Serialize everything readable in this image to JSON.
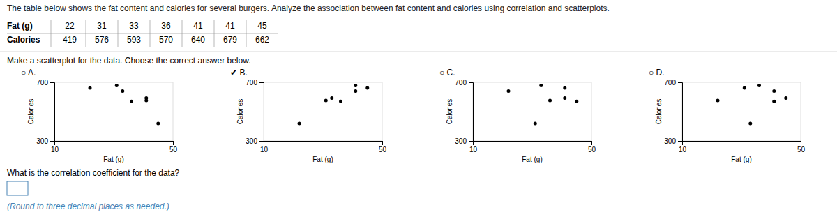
{
  "title": "The table below shows the fat content and calories for several burgers. Analyze the association between fat content and calories using correlation and scatterplots.",
  "table": {
    "rows": [
      {
        "label": "Fat (g)",
        "values": [
          22,
          31,
          33,
          36,
          41,
          41,
          45
        ]
      },
      {
        "label": "Calories",
        "values": [
          419,
          576,
          593,
          570,
          640,
          679,
          662
        ]
      }
    ]
  },
  "annotations": [
    "Make a scatterplot for the data. Choose the correct answer below.",
    "What is the correlation coefficient for the data?",
    "(Round to three decimal places as needed.)"
  ],
  "chart_data": [
    {
      "type": "scatter",
      "title": "○ A.",
      "x_label": "Fat (g)",
      "y_label": "Calories",
      "color": "#000000",
      "x": [
        22,
        31,
        33,
        36,
        41,
        41,
        45
      ],
      "values": [
        662,
        679,
        640,
        570,
        593,
        576,
        419
      ],
      "xlim": [
        10,
        50
      ],
      "xticks": [
        10,
        50
      ],
      "ylim": [
        300,
        700
      ],
      "yticks": [
        300,
        700
      ],
      "grid": true
    },
    {
      "type": "scatter",
      "title": "✔ B.",
      "x_label": "Fat (g)",
      "y_label": "Calories",
      "color": "#000000",
      "x": [
        22,
        31,
        33,
        36,
        41,
        41,
        45
      ],
      "values": [
        419,
        576,
        593,
        570,
        640,
        679,
        662
      ],
      "xlim": [
        10,
        50
      ],
      "xticks": [
        10,
        50
      ],
      "ylim": [
        300,
        700
      ],
      "yticks": [
        300,
        700
      ],
      "grid": true
    },
    {
      "type": "scatter",
      "title": "○ C.",
      "x_label": "Fat (g)",
      "y_label": "Calories",
      "color": "#000000",
      "x": [
        22,
        31,
        33,
        36,
        41,
        41,
        45
      ],
      "values": [
        640,
        419,
        679,
        576,
        662,
        593,
        570
      ],
      "xlim": [
        10,
        50
      ],
      "xticks": [
        10,
        50
      ],
      "ylim": [
        300,
        700
      ],
      "yticks": [
        300,
        700
      ],
      "grid": true
    },
    {
      "type": "scatter",
      "title": "○ D.",
      "x_label": "Fat (g)",
      "y_label": "Calories",
      "color": "#000000",
      "x": [
        22,
        31,
        33,
        36,
        41,
        41,
        45
      ],
      "values": [
        576,
        662,
        419,
        679,
        570,
        640,
        593
      ],
      "xlim": [
        10,
        50
      ],
      "xticks": [
        10,
        50
      ],
      "ylim": [
        300,
        700
      ],
      "yticks": [
        300,
        700
      ],
      "grid": true
    }
  ]
}
